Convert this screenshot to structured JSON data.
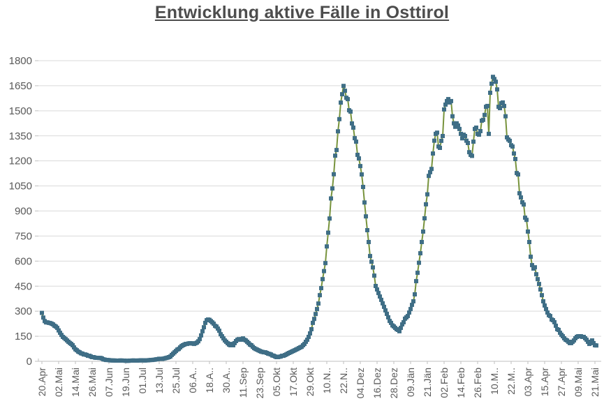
{
  "title": "Entwicklung aktive Fälle in Osttirol",
  "colors": {
    "title": "#4d4d4d",
    "axis_label": "#595959",
    "gridline": "#d9d9d9",
    "axis_line": "#bfbfbf",
    "line": "#77933c",
    "marker": "#3f6e86"
  },
  "chart_data": {
    "type": "line",
    "title": "Entwicklung aktive Fälle in Osttirol",
    "xlabel": "",
    "ylabel": "",
    "ylim": [
      0,
      1800
    ],
    "y_ticks": [
      0,
      150,
      300,
      450,
      600,
      750,
      900,
      1050,
      1200,
      1350,
      1500,
      1650,
      1800
    ],
    "x_tick_labels": [
      "20.Apr",
      "02.Mai",
      "14.Mai",
      "26.Mai",
      "07.Jun",
      "19.Jun",
      "01.Jul",
      "13.Jul",
      "25.Jul",
      "06.A..",
      "18.A..",
      "30.A..",
      "11.Sep",
      "23.Sep",
      "05.Okt",
      "17.Okt",
      "29.Okt",
      "10.N..",
      "22.N..",
      "04.Dez",
      "16.Dez",
      "28.Dez",
      "09.Jän",
      "21.Jän",
      "02.Feb",
      "14.Feb",
      "26.Feb",
      "10.M..",
      "22.M..",
      "03.Apr",
      "15.Apr",
      "27.Apr",
      "09.Mai",
      "21.Mai"
    ],
    "x_tick_every": 12,
    "grid": true,
    "legend": false,
    "marker": "square",
    "values": [
      290,
      262,
      241,
      233,
      233,
      230,
      229,
      225,
      221,
      213,
      208,
      200,
      185,
      171,
      158,
      146,
      140,
      133,
      125,
      117,
      110,
      104,
      96,
      83,
      72,
      66,
      58,
      54,
      48,
      46,
      41,
      41,
      38,
      33,
      33,
      29,
      25,
      25,
      22,
      21,
      21,
      20,
      20,
      17,
      12,
      10,
      8,
      8,
      7,
      6,
      5,
      5,
      5,
      4,
      4,
      4,
      5,
      5,
      4,
      4,
      3,
      3,
      3,
      4,
      4,
      5,
      5,
      4,
      4,
      5,
      5,
      6,
      6,
      5,
      5,
      6,
      6,
      7,
      8,
      8,
      9,
      10,
      12,
      13,
      15,
      15,
      14,
      16,
      18,
      20,
      22,
      25,
      29,
      38,
      46,
      54,
      62,
      70,
      74,
      83,
      91,
      96,
      100,
      104,
      104,
      107,
      108,
      108,
      106,
      104,
      108,
      112,
      120,
      133,
      155,
      180,
      204,
      230,
      246,
      250,
      248,
      241,
      233,
      225,
      212,
      208,
      196,
      183,
      162,
      150,
      137,
      125,
      117,
      108,
      100,
      96,
      104,
      96,
      109,
      121,
      129,
      133,
      129,
      133,
      137,
      129,
      125,
      117,
      109,
      100,
      96,
      87,
      79,
      74,
      70,
      66,
      62,
      58,
      56,
      54,
      54,
      50,
      46,
      44,
      41,
      35,
      33,
      29,
      25,
      25,
      27,
      29,
      33,
      33,
      37,
      41,
      46,
      50,
      54,
      58,
      62,
      66,
      70,
      74,
      79,
      83,
      87,
      96,
      104,
      117,
      129,
      146,
      167,
      192,
      230,
      254,
      283,
      313,
      346,
      396,
      438,
      492,
      540,
      588,
      688,
      770,
      855,
      975,
      1035,
      1120,
      1231,
      1265,
      1377,
      1450,
      1549,
      1599,
      1649,
      1620,
      1578,
      1570,
      1503,
      1495,
      1424,
      1399,
      1336,
      1315,
      1236,
      1215,
      1169,
      1119,
      1044,
      951,
      868,
      785,
      714,
      630,
      596,
      562,
      513,
      451,
      430,
      409,
      388,
      368,
      347,
      326,
      305,
      284,
      263,
      242,
      230,
      215,
      209,
      200,
      192,
      188,
      180,
      200,
      221,
      234,
      255,
      263,
      271,
      292,
      313,
      338,
      359,
      401,
      480,
      530,
      590,
      647,
      714,
      777,
      856,
      940,
      1000,
      1110,
      1132,
      1152,
      1244,
      1321,
      1362,
      1369,
      1286,
      1278,
      1320,
      1349,
      1508,
      1537,
      1558,
      1570,
      1550,
      1558,
      1467,
      1425,
      1404,
      1425,
      1412,
      1391,
      1362,
      1335,
      1357,
      1349,
      1321,
      1307,
      1252,
      1236,
      1230,
      1315,
      1391,
      1399,
      1362,
      1357,
      1378,
      1441,
      1446,
      1475,
      1524,
      1529,
      1362,
      1608,
      1662,
      1703,
      1690,
      1674,
      1628,
      1524,
      1516,
      1545,
      1550,
      1529,
      1467,
      1341,
      1328,
      1320,
      1294,
      1286,
      1244,
      1211,
      1127,
      1119,
      1006,
      981,
      952,
      939,
      860,
      847,
      777,
      714,
      626,
      576,
      555,
      563,
      521,
      492,
      463,
      430,
      396,
      359,
      334,
      313,
      292,
      276,
      271,
      250,
      246,
      234,
      213,
      192,
      188,
      171,
      159,
      150,
      138,
      129,
      125,
      117,
      109,
      109,
      117,
      125,
      138,
      146,
      150,
      150,
      150,
      146,
      146,
      138,
      129,
      117,
      104,
      117,
      125,
      109,
      96,
      95
    ]
  }
}
